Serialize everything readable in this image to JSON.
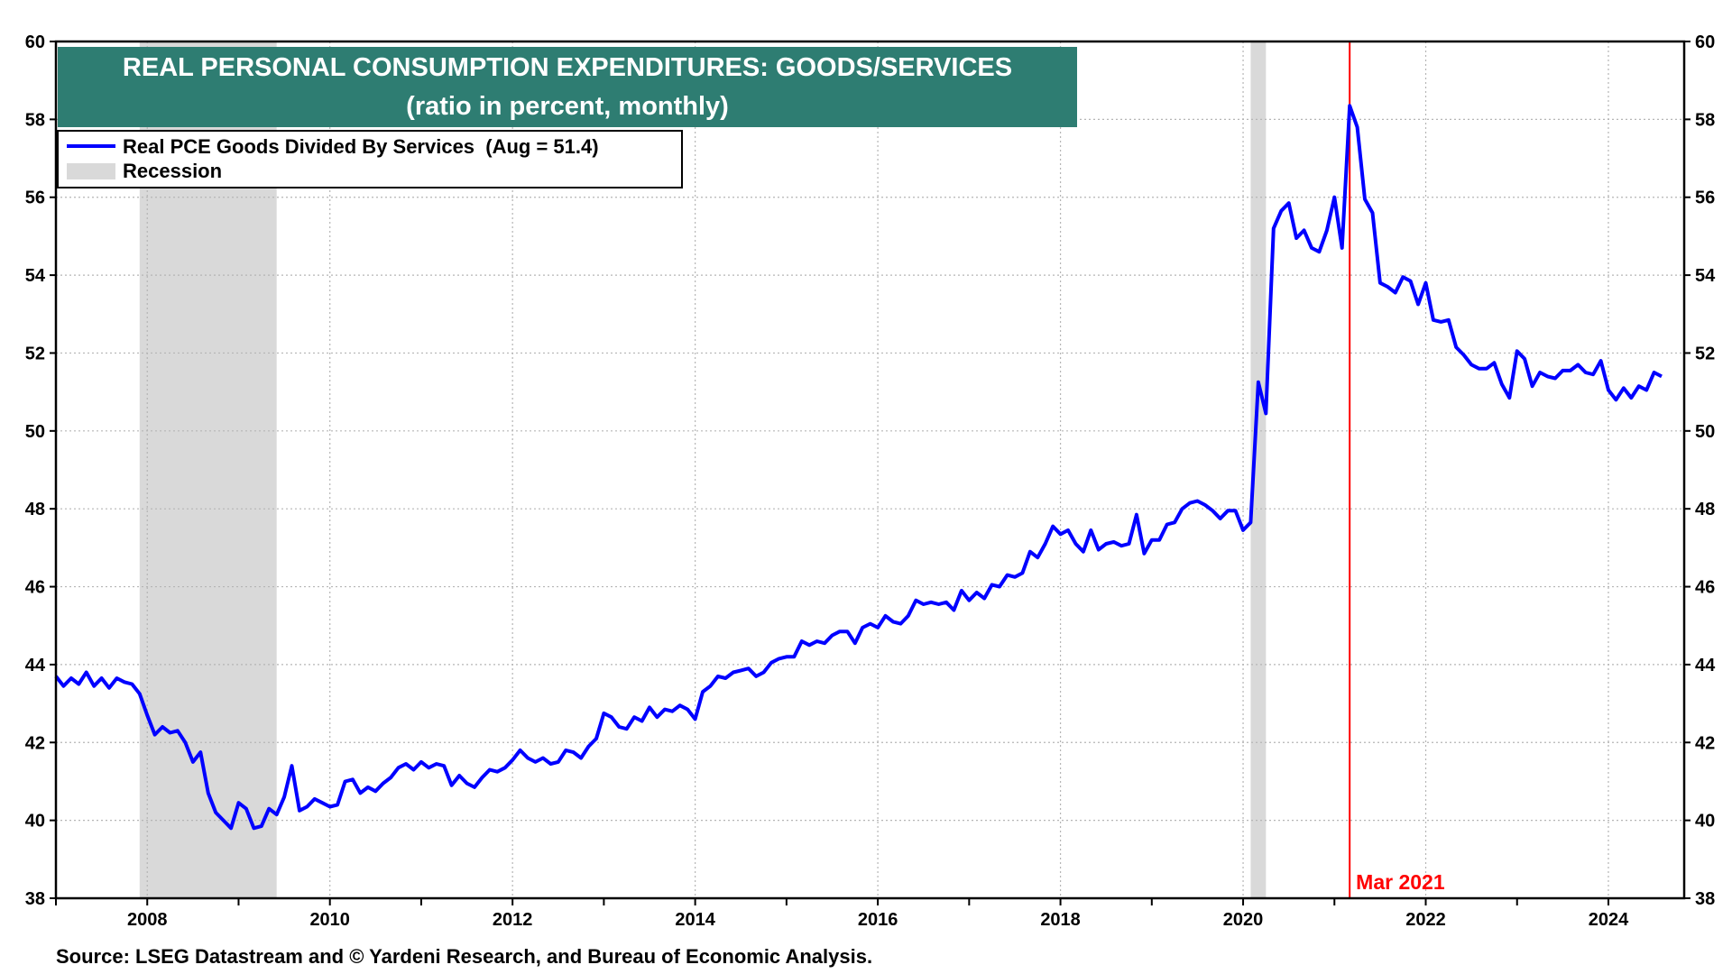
{
  "chart_data": {
    "type": "line",
    "title": "REAL PERSONAL CONSUMPTION EXPENDITURES: GOODS/SERVICES",
    "subtitle": "(ratio in percent, monthly)",
    "source": "Source: LSEG Datastream and © Yardeni Research, and Bureau of Economic Analysis.",
    "xlim": [
      2007.0,
      2024.83
    ],
    "ylim": [
      38,
      60
    ],
    "y_ticks": [
      38,
      40,
      42,
      44,
      46,
      48,
      50,
      52,
      54,
      56,
      58,
      60
    ],
    "x_ticks": [
      2008,
      2010,
      2012,
      2014,
      2016,
      2018,
      2020,
      2022,
      2024
    ],
    "grid": true,
    "legend_position": "top-left",
    "legend": [
      {
        "label": "Real PCE Goods Divided By Services  (Aug = 51.4)",
        "kind": "line",
        "color": "#0000ff"
      },
      {
        "label": "Recession",
        "kind": "band",
        "color": "#d9d9d9"
      }
    ],
    "recessions": [
      {
        "start": 2007.917,
        "end": 2009.417
      },
      {
        "start": 2020.083,
        "end": 2020.25
      }
    ],
    "marker": {
      "x": 2021.167,
      "label": "Mar 2021",
      "color": "#ff0000"
    },
    "colors": {
      "title_bg": "#2e7d72",
      "line": "#0000ff",
      "marker": "#ff0000",
      "recession": "#d9d9d9"
    },
    "series": [
      {
        "name": "Real PCE Goods Divided By Services",
        "points": [
          [
            2007.0,
            43.7
          ],
          [
            2007.083,
            43.45
          ],
          [
            2007.167,
            43.65
          ],
          [
            2007.25,
            43.5
          ],
          [
            2007.333,
            43.8
          ],
          [
            2007.417,
            43.45
          ],
          [
            2007.5,
            43.65
          ],
          [
            2007.583,
            43.4
          ],
          [
            2007.667,
            43.65
          ],
          [
            2007.75,
            43.55
          ],
          [
            2007.833,
            43.5
          ],
          [
            2007.917,
            43.25
          ],
          [
            2008.0,
            42.7
          ],
          [
            2008.083,
            42.2
          ],
          [
            2008.167,
            42.4
          ],
          [
            2008.25,
            42.25
          ],
          [
            2008.333,
            42.3
          ],
          [
            2008.417,
            42.0
          ],
          [
            2008.5,
            41.5
          ],
          [
            2008.583,
            41.75
          ],
          [
            2008.667,
            40.7
          ],
          [
            2008.75,
            40.2
          ],
          [
            2008.833,
            40.0
          ],
          [
            2008.917,
            39.8
          ],
          [
            2009.0,
            40.45
          ],
          [
            2009.083,
            40.3
          ],
          [
            2009.167,
            39.8
          ],
          [
            2009.25,
            39.85
          ],
          [
            2009.333,
            40.3
          ],
          [
            2009.417,
            40.15
          ],
          [
            2009.5,
            40.6
          ],
          [
            2009.583,
            41.4
          ],
          [
            2009.667,
            40.25
          ],
          [
            2009.75,
            40.35
          ],
          [
            2009.833,
            40.55
          ],
          [
            2009.917,
            40.45
          ],
          [
            2010.0,
            40.35
          ],
          [
            2010.083,
            40.4
          ],
          [
            2010.167,
            41.0
          ],
          [
            2010.25,
            41.05
          ],
          [
            2010.333,
            40.7
          ],
          [
            2010.417,
            40.85
          ],
          [
            2010.5,
            40.75
          ],
          [
            2010.583,
            40.95
          ],
          [
            2010.667,
            41.1
          ],
          [
            2010.75,
            41.35
          ],
          [
            2010.833,
            41.45
          ],
          [
            2010.917,
            41.3
          ],
          [
            2011.0,
            41.5
          ],
          [
            2011.083,
            41.35
          ],
          [
            2011.167,
            41.45
          ],
          [
            2011.25,
            41.4
          ],
          [
            2011.333,
            40.9
          ],
          [
            2011.417,
            41.15
          ],
          [
            2011.5,
            40.95
          ],
          [
            2011.583,
            40.85
          ],
          [
            2011.667,
            41.1
          ],
          [
            2011.75,
            41.3
          ],
          [
            2011.833,
            41.25
          ],
          [
            2011.917,
            41.35
          ],
          [
            2012.0,
            41.55
          ],
          [
            2012.083,
            41.8
          ],
          [
            2012.167,
            41.6
          ],
          [
            2012.25,
            41.5
          ],
          [
            2012.333,
            41.6
          ],
          [
            2012.417,
            41.45
          ],
          [
            2012.5,
            41.5
          ],
          [
            2012.583,
            41.8
          ],
          [
            2012.667,
            41.75
          ],
          [
            2012.75,
            41.6
          ],
          [
            2012.833,
            41.9
          ],
          [
            2012.917,
            42.1
          ],
          [
            2013.0,
            42.75
          ],
          [
            2013.083,
            42.65
          ],
          [
            2013.167,
            42.4
          ],
          [
            2013.25,
            42.35
          ],
          [
            2013.333,
            42.65
          ],
          [
            2013.417,
            42.55
          ],
          [
            2013.5,
            42.9
          ],
          [
            2013.583,
            42.65
          ],
          [
            2013.667,
            42.85
          ],
          [
            2013.75,
            42.8
          ],
          [
            2013.833,
            42.95
          ],
          [
            2013.917,
            42.85
          ],
          [
            2014.0,
            42.6
          ],
          [
            2014.083,
            43.3
          ],
          [
            2014.167,
            43.45
          ],
          [
            2014.25,
            43.7
          ],
          [
            2014.333,
            43.65
          ],
          [
            2014.417,
            43.8
          ],
          [
            2014.5,
            43.85
          ],
          [
            2014.583,
            43.9
          ],
          [
            2014.667,
            43.7
          ],
          [
            2014.75,
            43.8
          ],
          [
            2014.833,
            44.05
          ],
          [
            2014.917,
            44.15
          ],
          [
            2015.0,
            44.2
          ],
          [
            2015.083,
            44.2
          ],
          [
            2015.167,
            44.6
          ],
          [
            2015.25,
            44.5
          ],
          [
            2015.333,
            44.6
          ],
          [
            2015.417,
            44.55
          ],
          [
            2015.5,
            44.75
          ],
          [
            2015.583,
            44.85
          ],
          [
            2015.667,
            44.85
          ],
          [
            2015.75,
            44.55
          ],
          [
            2015.833,
            44.95
          ],
          [
            2015.917,
            45.05
          ],
          [
            2016.0,
            44.95
          ],
          [
            2016.083,
            45.25
          ],
          [
            2016.167,
            45.1
          ],
          [
            2016.25,
            45.05
          ],
          [
            2016.333,
            45.25
          ],
          [
            2016.417,
            45.65
          ],
          [
            2016.5,
            45.55
          ],
          [
            2016.583,
            45.6
          ],
          [
            2016.667,
            45.55
          ],
          [
            2016.75,
            45.6
          ],
          [
            2016.833,
            45.4
          ],
          [
            2016.917,
            45.9
          ],
          [
            2017.0,
            45.65
          ],
          [
            2017.083,
            45.85
          ],
          [
            2017.167,
            45.7
          ],
          [
            2017.25,
            46.05
          ],
          [
            2017.333,
            46.0
          ],
          [
            2017.417,
            46.3
          ],
          [
            2017.5,
            46.25
          ],
          [
            2017.583,
            46.35
          ],
          [
            2017.667,
            46.9
          ],
          [
            2017.75,
            46.75
          ],
          [
            2017.833,
            47.1
          ],
          [
            2017.917,
            47.55
          ],
          [
            2018.0,
            47.35
          ],
          [
            2018.083,
            47.45
          ],
          [
            2018.167,
            47.1
          ],
          [
            2018.25,
            46.9
          ],
          [
            2018.333,
            47.45
          ],
          [
            2018.417,
            46.95
          ],
          [
            2018.5,
            47.1
          ],
          [
            2018.583,
            47.15
          ],
          [
            2018.667,
            47.05
          ],
          [
            2018.75,
            47.1
          ],
          [
            2018.833,
            47.85
          ],
          [
            2018.917,
            46.85
          ],
          [
            2019.0,
            47.2
          ],
          [
            2019.083,
            47.2
          ],
          [
            2019.167,
            47.6
          ],
          [
            2019.25,
            47.65
          ],
          [
            2019.333,
            48.0
          ],
          [
            2019.417,
            48.15
          ],
          [
            2019.5,
            48.2
          ],
          [
            2019.583,
            48.1
          ],
          [
            2019.667,
            47.95
          ],
          [
            2019.75,
            47.75
          ],
          [
            2019.833,
            47.95
          ],
          [
            2019.917,
            47.95
          ],
          [
            2020.0,
            47.45
          ],
          [
            2020.083,
            47.65
          ],
          [
            2020.167,
            51.25
          ],
          [
            2020.25,
            50.45
          ],
          [
            2020.333,
            55.2
          ],
          [
            2020.417,
            55.65
          ],
          [
            2020.5,
            55.85
          ],
          [
            2020.583,
            54.95
          ],
          [
            2020.667,
            55.15
          ],
          [
            2020.75,
            54.7
          ],
          [
            2020.833,
            54.6
          ],
          [
            2020.917,
            55.15
          ],
          [
            2021.0,
            56.0
          ],
          [
            2021.083,
            54.7
          ],
          [
            2021.167,
            58.35
          ],
          [
            2021.25,
            57.8
          ],
          [
            2021.333,
            55.95
          ],
          [
            2021.417,
            55.6
          ],
          [
            2021.5,
            53.8
          ],
          [
            2021.583,
            53.7
          ],
          [
            2021.667,
            53.55
          ],
          [
            2021.75,
            53.95
          ],
          [
            2021.833,
            53.85
          ],
          [
            2021.917,
            53.25
          ],
          [
            2022.0,
            53.8
          ],
          [
            2022.083,
            52.85
          ],
          [
            2022.167,
            52.8
          ],
          [
            2022.25,
            52.85
          ],
          [
            2022.333,
            52.15
          ],
          [
            2022.417,
            51.95
          ],
          [
            2022.5,
            51.7
          ],
          [
            2022.583,
            51.6
          ],
          [
            2022.667,
            51.6
          ],
          [
            2022.75,
            51.75
          ],
          [
            2022.833,
            51.2
          ],
          [
            2022.917,
            50.85
          ],
          [
            2023.0,
            52.05
          ],
          [
            2023.083,
            51.85
          ],
          [
            2023.167,
            51.15
          ],
          [
            2023.25,
            51.5
          ],
          [
            2023.333,
            51.4
          ],
          [
            2023.417,
            51.35
          ],
          [
            2023.5,
            51.55
          ],
          [
            2023.583,
            51.55
          ],
          [
            2023.667,
            51.7
          ],
          [
            2023.75,
            51.5
          ],
          [
            2023.833,
            51.45
          ],
          [
            2023.917,
            51.8
          ],
          [
            2024.0,
            51.05
          ],
          [
            2024.083,
            50.8
          ],
          [
            2024.167,
            51.1
          ],
          [
            2024.25,
            50.85
          ],
          [
            2024.333,
            51.15
          ],
          [
            2024.417,
            51.05
          ],
          [
            2024.5,
            51.5
          ],
          [
            2024.583,
            51.4
          ]
        ]
      }
    ]
  }
}
